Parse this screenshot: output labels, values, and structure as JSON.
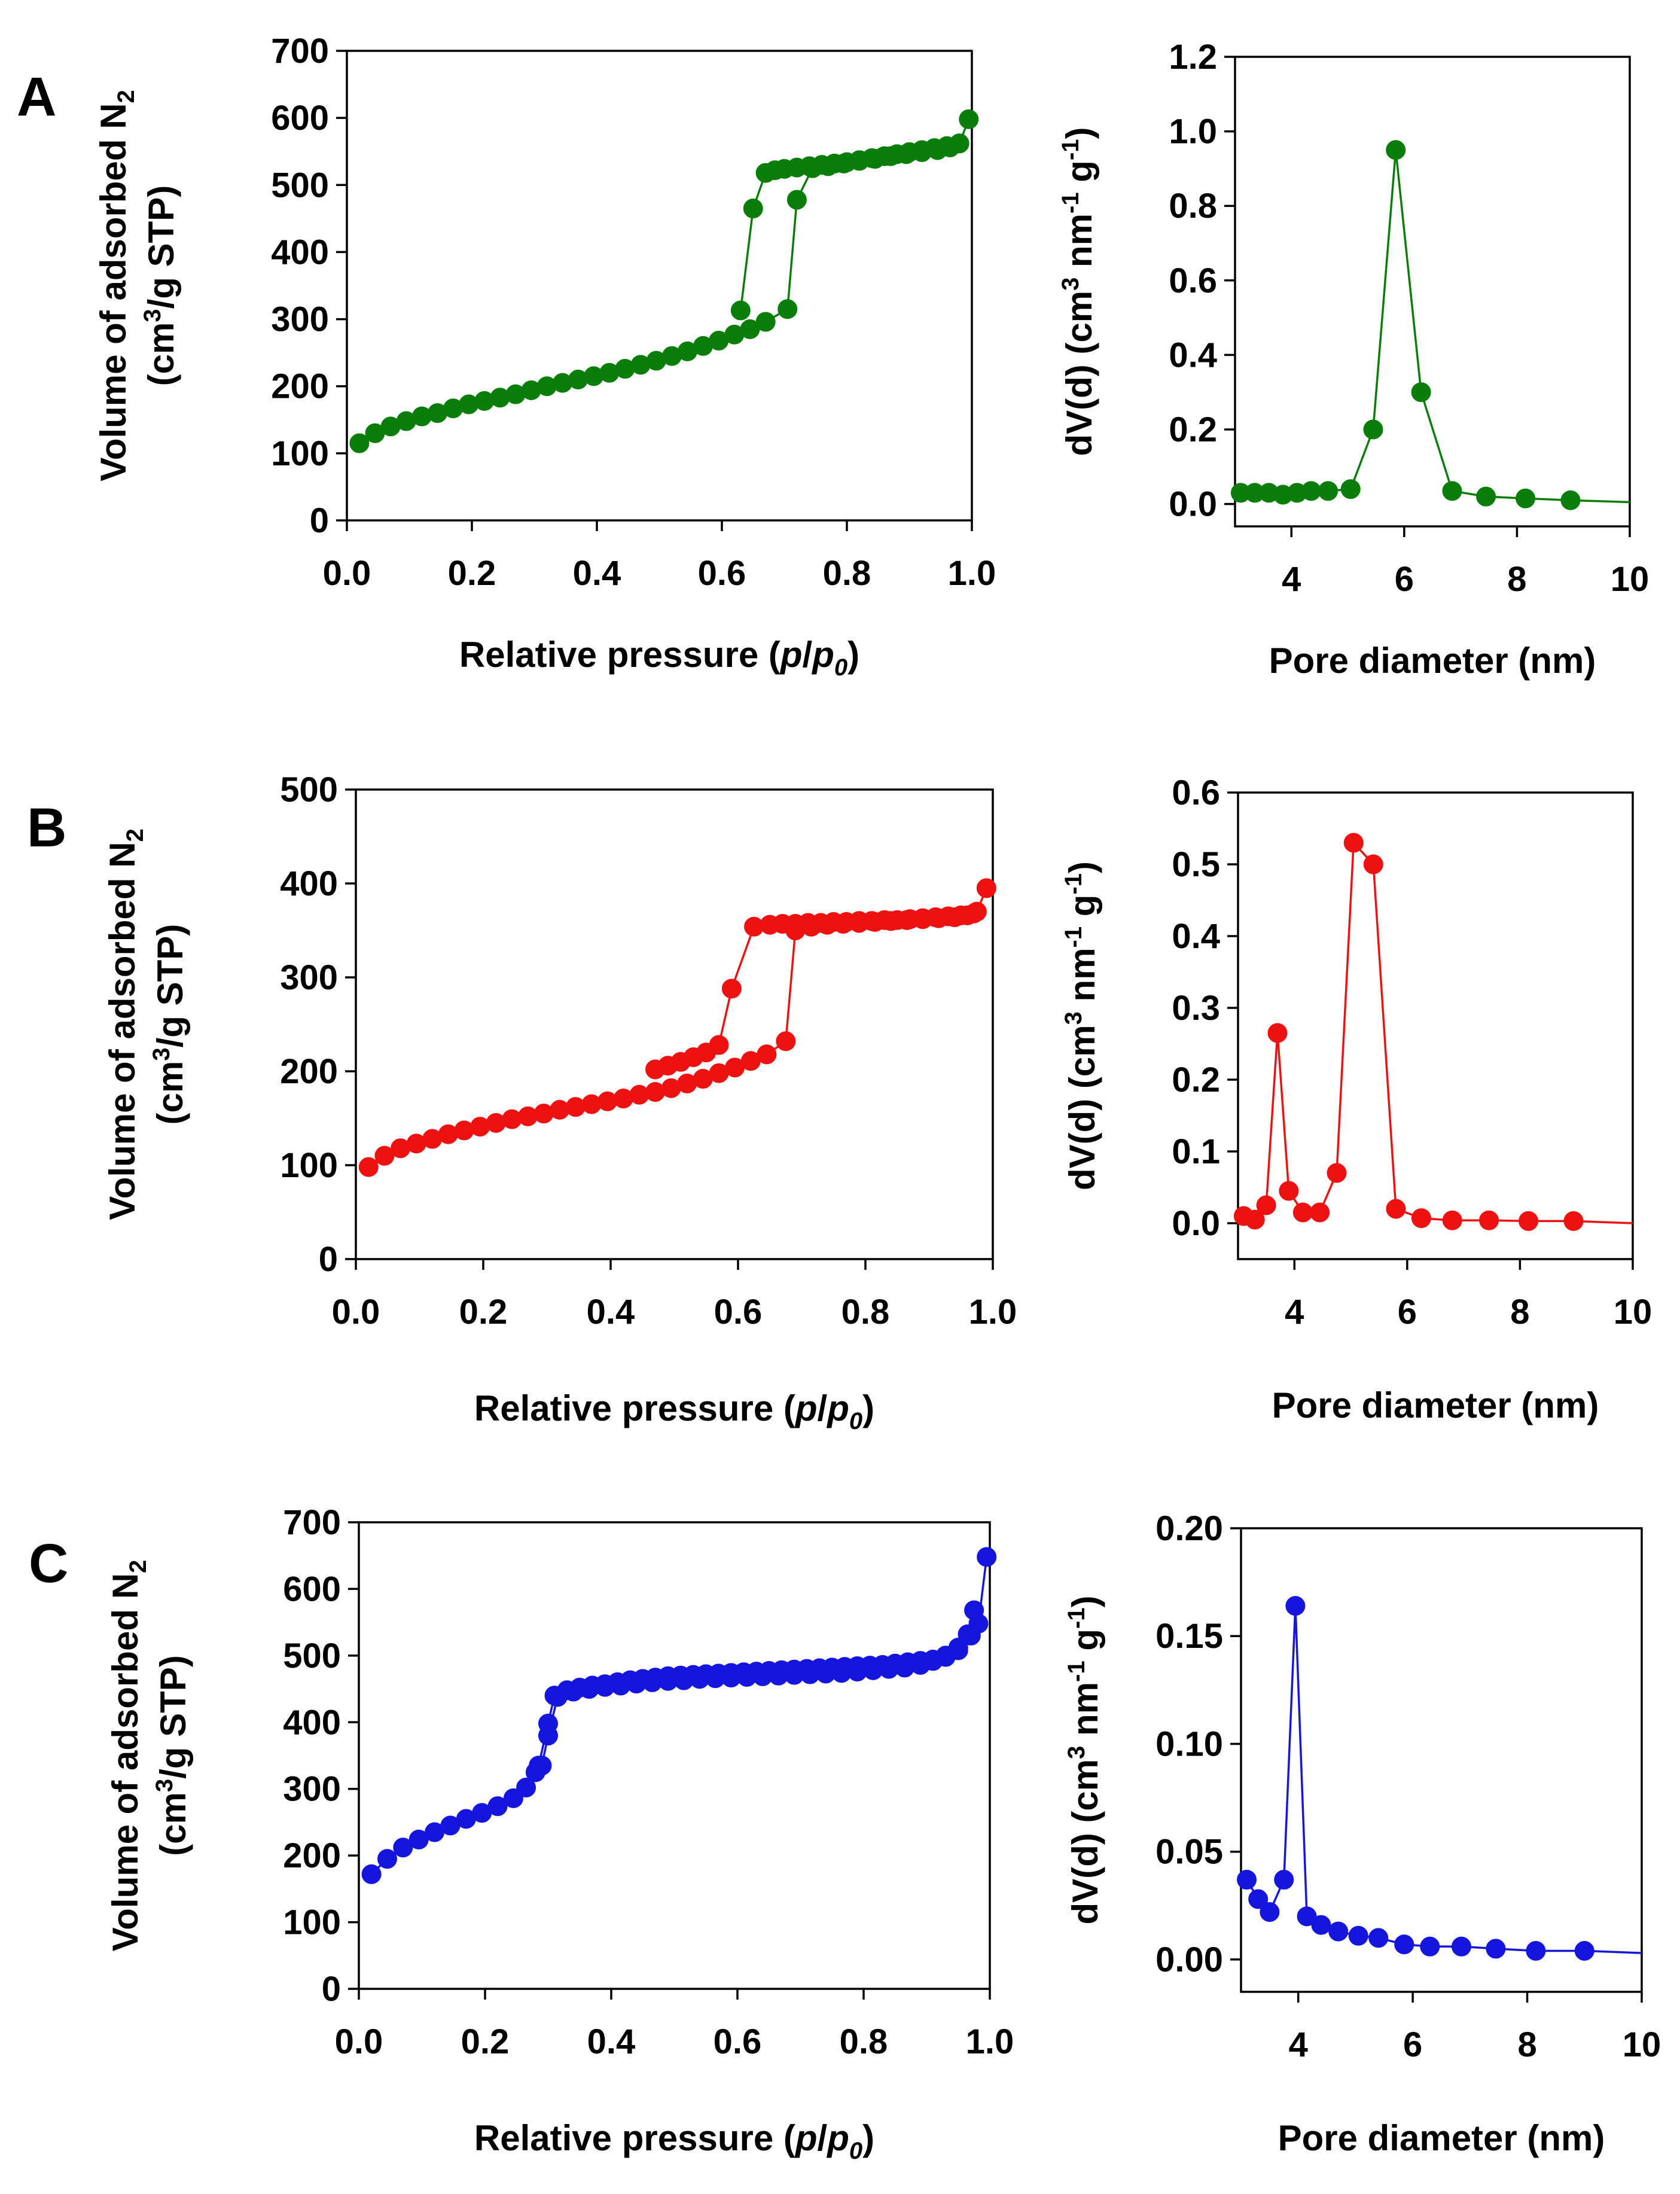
{
  "panel_letters": [
    "A",
    "B",
    "C"
  ],
  "chart_data": [
    {
      "id": "A-iso",
      "type": "line",
      "color": "#0a7d0a",
      "xlabel": {
        "main": "Relative pressure (",
        "p": "p",
        "slash": "/",
        "p0": "p",
        "sub": "0",
        "close": ")"
      },
      "ylabel": {
        "line1": "Volume of adsorbed N",
        "line1_sub": "2",
        "line2_pre": "(cm",
        "line2_sup": "3",
        "line2_post": "/g STP)"
      },
      "xlim": [
        0,
        1
      ],
      "ylim": [
        0,
        700
      ],
      "xticks": [
        0,
        0.2,
        0.4,
        0.6,
        0.8,
        1.0
      ],
      "xtick_labels": [
        "0.0",
        "0.2",
        "0.4",
        "0.6",
        "0.8",
        "1.0"
      ],
      "yticks": [
        0,
        100,
        200,
        300,
        400,
        500,
        600,
        700
      ],
      "ytick_labels": [
        "0",
        "100",
        "200",
        "300",
        "400",
        "500",
        "600",
        "700"
      ],
      "series": [
        {
          "name": "adsorption",
          "x": [
            0.02,
            0.045,
            0.07,
            0.095,
            0.12,
            0.145,
            0.17,
            0.195,
            0.22,
            0.245,
            0.27,
            0.295,
            0.32,
            0.345,
            0.37,
            0.395,
            0.42,
            0.445,
            0.47,
            0.495,
            0.52,
            0.545,
            0.57,
            0.595,
            0.62,
            0.645,
            0.67,
            0.705,
            0.72,
            0.745,
            0.77,
            0.795,
            0.82,
            0.845,
            0.87,
            0.895,
            0.92,
            0.945,
            0.965,
            0.98,
            0.995
          ],
          "y": [
            115,
            130,
            140,
            148,
            155,
            160,
            167,
            173,
            178,
            183,
            188,
            194,
            200,
            205,
            210,
            215,
            220,
            226,
            232,
            238,
            245,
            252,
            260,
            268,
            277,
            285,
            296,
            315,
            478,
            525,
            528,
            532,
            536,
            539,
            543,
            546,
            549,
            552,
            556,
            562,
            598
          ]
        },
        {
          "name": "desorption",
          "x": [
            0.98,
            0.96,
            0.94,
            0.92,
            0.9,
            0.88,
            0.86,
            0.84,
            0.82,
            0.8,
            0.78,
            0.76,
            0.74,
            0.72,
            0.7,
            0.685,
            0.67,
            0.65,
            0.63
          ],
          "y": [
            562,
            558,
            555,
            552,
            549,
            546,
            543,
            540,
            537,
            534,
            532,
            530,
            528,
            526,
            524,
            522,
            518,
            465,
            313
          ]
        }
      ]
    },
    {
      "id": "A-psd",
      "type": "line",
      "color": "#0a7d0a",
      "xlabel": {
        "text": "Pore diameter (nm)"
      },
      "ylabel": {
        "pre": "dV(d) (cm",
        "sup1": "3",
        "mid": " nm",
        "sup2": "-1",
        "mid2": " g",
        "sup3": "-1",
        "post": ")"
      },
      "xlim": [
        3,
        10
      ],
      "ylim": [
        -0.06,
        1.2
      ],
      "xticks": [
        4,
        6,
        8,
        10
      ],
      "xtick_labels": [
        "4",
        "6",
        "8",
        "10"
      ],
      "yticks": [
        0,
        0.2,
        0.4,
        0.6,
        0.8,
        1.0,
        1.2
      ],
      "ytick_labels": [
        "0.0",
        "0.2",
        "0.4",
        "0.6",
        "0.8",
        "1.0",
        "1.2"
      ],
      "line_end": [
        10,
        0.005
      ],
      "series": [
        {
          "name": "psd",
          "x": [
            3.1,
            3.35,
            3.6,
            3.85,
            4.1,
            4.35,
            4.65,
            5.05,
            5.45,
            5.85,
            6.3,
            6.85,
            7.45,
            8.15,
            8.95
          ],
          "y": [
            0.03,
            0.03,
            0.03,
            0.025,
            0.03,
            0.035,
            0.035,
            0.04,
            0.2,
            0.95,
            0.3,
            0.035,
            0.02,
            0.015,
            0.01
          ]
        }
      ]
    },
    {
      "id": "B-iso",
      "type": "line",
      "color": "#ee1111",
      "xlabel": {
        "main": "Relative pressure (",
        "p": "p",
        "slash": "/",
        "p0": "p",
        "sub": "0",
        "close": ")"
      },
      "ylabel": {
        "line1": "Volume of adsorbed N",
        "line1_sub": "2",
        "line2_pre": "(cm",
        "line2_sup": "3",
        "line2_post": "/g STP)"
      },
      "xlim": [
        0,
        1
      ],
      "ylim": [
        0,
        500
      ],
      "xticks": [
        0,
        0.2,
        0.4,
        0.6,
        0.8,
        1.0
      ],
      "xtick_labels": [
        "0.0",
        "0.2",
        "0.4",
        "0.6",
        "0.8",
        "1.0"
      ],
      "yticks": [
        0,
        100,
        200,
        300,
        400,
        500
      ],
      "ytick_labels": [
        "0",
        "100",
        "200",
        "300",
        "400",
        "500"
      ],
      "series": [
        {
          "name": "adsorption",
          "x": [
            0.02,
            0.045,
            0.07,
            0.095,
            0.12,
            0.145,
            0.17,
            0.195,
            0.22,
            0.245,
            0.27,
            0.295,
            0.32,
            0.345,
            0.37,
            0.395,
            0.42,
            0.445,
            0.47,
            0.495,
            0.52,
            0.545,
            0.57,
            0.595,
            0.62,
            0.645,
            0.675,
            0.69,
            0.715,
            0.74,
            0.765,
            0.79,
            0.815,
            0.84,
            0.865,
            0.89,
            0.915,
            0.94,
            0.96,
            0.975,
            0.99
          ],
          "y": [
            98,
            110,
            118,
            123,
            128,
            133,
            137,
            141,
            145,
            149,
            152,
            155,
            159,
            162,
            165,
            168,
            171,
            175,
            178,
            182,
            187,
            192,
            198,
            204,
            211,
            218,
            232,
            350,
            354,
            356,
            357,
            358,
            359,
            360,
            361,
            362,
            363,
            364,
            366,
            370,
            395
          ]
        },
        {
          "name": "desorption",
          "x": [
            0.97,
            0.95,
            0.93,
            0.91,
            0.89,
            0.87,
            0.85,
            0.83,
            0.81,
            0.79,
            0.77,
            0.75,
            0.73,
            0.71,
            0.69,
            0.67,
            0.65,
            0.625,
            0.59,
            0.57,
            0.55,
            0.53,
            0.51,
            0.49,
            0.47
          ],
          "y": [
            368,
            366,
            365,
            364,
            363,
            362,
            361,
            361,
            360,
            360,
            359,
            359,
            358,
            358,
            357,
            357,
            356,
            354,
            288,
            228,
            220,
            215,
            210,
            206,
            202
          ]
        }
      ]
    },
    {
      "id": "B-psd",
      "type": "line",
      "color": "#ee1111",
      "xlabel": {
        "text": "Pore diameter (nm)"
      },
      "ylabel": {
        "pre": "dV(d) (cm",
        "sup1": "3",
        "mid": " nm",
        "sup2": "-1",
        "mid2": " g",
        "sup3": "-1",
        "post": ")"
      },
      "xlim": [
        3,
        10
      ],
      "ylim": [
        -0.05,
        0.6
      ],
      "xticks": [
        4,
        6,
        8,
        10
      ],
      "xtick_labels": [
        "4",
        "6",
        "8",
        "10"
      ],
      "yticks": [
        0,
        0.1,
        0.2,
        0.3,
        0.4,
        0.5,
        0.6
      ],
      "ytick_labels": [
        "0.0",
        "0.1",
        "0.2",
        "0.3",
        "0.4",
        "0.5",
        "0.6"
      ],
      "line_end": [
        10,
        0.0
      ],
      "series": [
        {
          "name": "psd",
          "x": [
            3.1,
            3.3,
            3.5,
            3.7,
            3.9,
            4.15,
            4.45,
            4.75,
            5.05,
            5.4,
            5.8,
            6.25,
            6.8,
            7.45,
            8.15,
            8.95
          ],
          "y": [
            0.01,
            0.005,
            0.025,
            0.265,
            0.045,
            0.015,
            0.015,
            0.07,
            0.53,
            0.5,
            0.02,
            0.007,
            0.004,
            0.004,
            0.003,
            0.003
          ]
        }
      ]
    },
    {
      "id": "C-iso",
      "type": "line",
      "color": "#1515dd",
      "xlabel": {
        "main": "Relative pressure (",
        "p": "p",
        "slash": "/",
        "p0": "p",
        "sub": "0",
        "close": ")"
      },
      "ylabel": {
        "line1": "Volume of adsorbed N",
        "line1_sub": "2",
        "line2_pre": "(cm",
        "line2_sup": "3",
        "line2_post": "/g STP)"
      },
      "xlim": [
        0,
        1
      ],
      "ylim": [
        0,
        700
      ],
      "xticks": [
        0,
        0.2,
        0.4,
        0.6,
        0.8,
        1.0
      ],
      "xtick_labels": [
        "0.0",
        "0.2",
        "0.4",
        "0.6",
        "0.8",
        "1.0"
      ],
      "yticks": [
        0,
        100,
        200,
        300,
        400,
        500,
        600,
        700
      ],
      "ytick_labels": [
        "0",
        "100",
        "200",
        "300",
        "400",
        "500",
        "600",
        "700"
      ],
      "series": [
        {
          "name": "adsorption",
          "x": [
            0.02,
            0.045,
            0.07,
            0.095,
            0.12,
            0.145,
            0.17,
            0.195,
            0.22,
            0.245,
            0.265,
            0.28,
            0.29,
            0.3,
            0.315,
            0.34,
            0.365,
            0.39,
            0.415,
            0.44,
            0.465,
            0.49,
            0.515,
            0.54,
            0.565,
            0.59,
            0.615,
            0.64,
            0.665,
            0.69,
            0.715,
            0.74,
            0.765,
            0.79,
            0.815,
            0.84,
            0.865,
            0.89,
            0.91,
            0.93,
            0.95,
            0.965,
            0.975,
            0.982,
            0.995
          ],
          "y": [
            172,
            195,
            212,
            224,
            235,
            245,
            255,
            264,
            274,
            286,
            302,
            325,
            335,
            380,
            438,
            446,
            450,
            453,
            455,
            458,
            460,
            462,
            463,
            465,
            466,
            467,
            468,
            469,
            470,
            471,
            472,
            473,
            474,
            476,
            478,
            480,
            482,
            486,
            492,
            500,
            512,
            532,
            568,
            548,
            648
          ]
        },
        {
          "name": "desorption",
          "x": [
            0.97,
            0.95,
            0.93,
            0.91,
            0.89,
            0.87,
            0.85,
            0.83,
            0.81,
            0.79,
            0.77,
            0.75,
            0.73,
            0.71,
            0.69,
            0.67,
            0.65,
            0.63,
            0.61,
            0.59,
            0.57,
            0.55,
            0.53,
            0.51,
            0.49,
            0.47,
            0.45,
            0.43,
            0.41,
            0.39,
            0.37,
            0.35,
            0.33,
            0.31,
            0.3,
            0.285
          ],
          "y": [
            530,
            508,
            498,
            494,
            492,
            490,
            488,
            486,
            485,
            484,
            483,
            482,
            481,
            480,
            479,
            478,
            477,
            476,
            475,
            474,
            473,
            472,
            471,
            470,
            469,
            467,
            465,
            463,
            460,
            457,
            455,
            452,
            448,
            440,
            398,
            335
          ]
        }
      ]
    },
    {
      "id": "C-psd",
      "type": "line",
      "color": "#1515dd",
      "xlabel": {
        "text": "Pore diameter (nm)"
      },
      "ylabel": {
        "pre": "dV(d) (cm",
        "sup1": "3",
        "mid": " nm",
        "sup2": "-1",
        "mid2": " g",
        "sup3": "-1",
        "post": ")"
      },
      "xlim": [
        3,
        10
      ],
      "ylim": [
        -0.015,
        0.2
      ],
      "xticks": [
        4,
        6,
        8,
        10
      ],
      "xtick_labels": [
        "4",
        "6",
        "8",
        "10"
      ],
      "yticks": [
        0,
        0.05,
        0.1,
        0.15,
        0.2
      ],
      "ytick_labels": [
        "0.00",
        "0.05",
        "0.10",
        "0.15",
        "0.20"
      ],
      "line_end": [
        10,
        0.003
      ],
      "series": [
        {
          "name": "psd",
          "x": [
            3.1,
            3.3,
            3.5,
            3.75,
            3.95,
            4.15,
            4.4,
            4.7,
            5.05,
            5.4,
            5.85,
            6.3,
            6.85,
            7.45,
            8.15,
            9.0
          ],
          "y": [
            0.037,
            0.028,
            0.022,
            0.037,
            0.164,
            0.02,
            0.016,
            0.013,
            0.011,
            0.01,
            0.007,
            0.006,
            0.006,
            0.005,
            0.004,
            0.004
          ]
        }
      ]
    }
  ]
}
